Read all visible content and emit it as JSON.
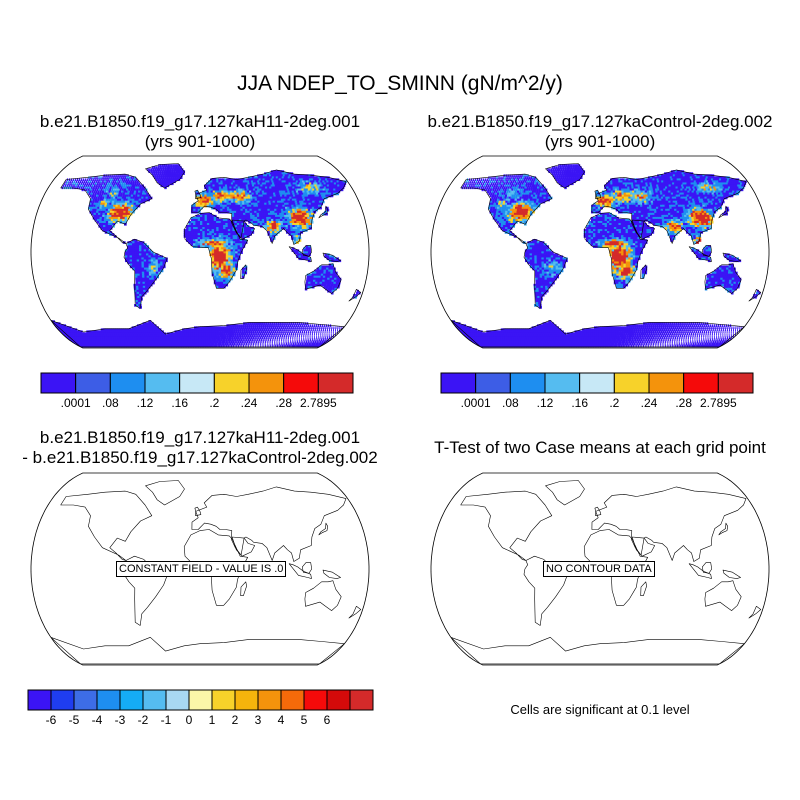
{
  "title": "JJA NDEP_TO_SMINN (gN/m^2/y)",
  "panels": [
    {
      "id": "case1",
      "title_line1": "b.e21.B1850.f19_g17.127kaH11-2deg.001",
      "title_line2": "(yrs 901-1000)"
    },
    {
      "id": "case2",
      "title_line1": "b.e21.B1850.f19_g17.127kaControl-2deg.002",
      "title_line2": "(yrs 901-1000)"
    },
    {
      "id": "diff",
      "title_line1": "b.e21.B1850.f19_g17.127kaH11-2deg.001",
      "title_line2": "- b.e21.B1850.f19_g17.127kaControl-2deg.002",
      "annotation": "CONSTANT FIELD - VALUE IS .0"
    },
    {
      "id": "ttest",
      "title_line1": "T-Test of two Case means at each grid point",
      "annotation": "NO CONTOUR DATA",
      "footnote": "Cells are significant at 0.1 level"
    }
  ],
  "colorbar_top": {
    "colors": [
      "#3b14f5",
      "#3d5de6",
      "#1e8ef0",
      "#55bcf0",
      "#c7e8f6",
      "#f7d22a",
      "#f4930c",
      "#f50a0a",
      "#d42a2a"
    ],
    "labels": [
      ".0001",
      ".08",
      ".12",
      ".16",
      ".2",
      ".24",
      ".28",
      "2.7895"
    ]
  },
  "colorbar_diff": {
    "colors": [
      "#3b14f5",
      "#1f3df0",
      "#3d6de6",
      "#1e8ef0",
      "#15acf5",
      "#55bcf0",
      "#a8d8f2",
      "#fbf7a8",
      "#f7d22a",
      "#f5b40c",
      "#f4930c",
      "#f56a0a",
      "#f50a0a",
      "#d40a0a",
      "#d42a2a"
    ],
    "labels": [
      "-6",
      "-5",
      "-4",
      "-3",
      "-2",
      "-1",
      "0",
      "1",
      "2",
      "3",
      "4",
      "5",
      "6"
    ]
  },
  "map_colors": {
    "land_low": "#3b14f5",
    "land_mid": "#1e8ef0",
    "land_light": "#55bcf0",
    "land_yellow": "#f7d22a",
    "land_orange": "#f4930c",
    "land_red": "#d42a2a",
    "coast": "#000000"
  }
}
